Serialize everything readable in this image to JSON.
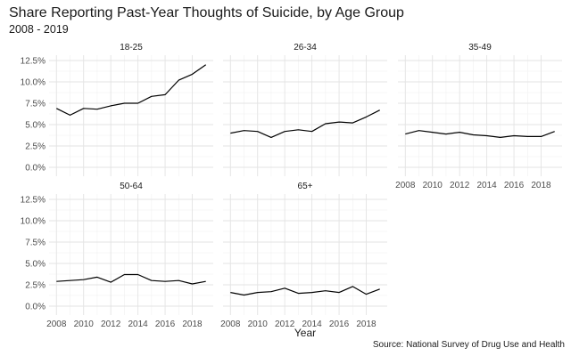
{
  "title": "Share Reporting Past-Year Thoughts of Suicide, by Age Group",
  "subtitle": "2008 - 2019",
  "caption": "Source: National Survey of Drug Use and Health",
  "chart_data": {
    "type": "line",
    "layout": "small-multiples",
    "xlabel": "Year",
    "ylabel": "",
    "xlim": [
      2008,
      2019
    ],
    "ylim": [
      0,
      12.5
    ],
    "x_ticks": [
      "2008",
      "2010",
      "2012",
      "2014",
      "2016",
      "2018"
    ],
    "y_ticks": [
      "0.0%",
      "2.5%",
      "5.0%",
      "7.5%",
      "10.0%",
      "12.5%"
    ],
    "grid": true,
    "line_color": "#000000",
    "x": [
      2008,
      2009,
      2010,
      2011,
      2012,
      2013,
      2014,
      2015,
      2016,
      2017,
      2018,
      2019
    ],
    "panels": [
      {
        "name": "18-25",
        "values": [
          6.9,
          6.1,
          6.9,
          6.8,
          7.2,
          7.5,
          7.5,
          8.3,
          8.5,
          10.2,
          10.9,
          12.0
        ]
      },
      {
        "name": "26-34",
        "values": [
          4.0,
          4.3,
          4.2,
          3.5,
          4.2,
          4.4,
          4.2,
          5.1,
          5.3,
          5.2,
          5.9,
          6.7
        ]
      },
      {
        "name": "35-49",
        "values": [
          3.9,
          4.3,
          4.1,
          3.9,
          4.1,
          3.8,
          3.7,
          3.5,
          3.7,
          3.6,
          3.6,
          4.2
        ]
      },
      {
        "name": "50-64",
        "values": [
          2.9,
          3.0,
          3.1,
          3.4,
          2.8,
          3.7,
          3.7,
          3.0,
          2.9,
          3.0,
          2.6,
          2.9
        ]
      },
      {
        "name": "65+",
        "values": [
          1.6,
          1.3,
          1.6,
          1.7,
          2.1,
          1.5,
          1.6,
          1.8,
          1.6,
          2.3,
          1.4,
          2.0
        ]
      }
    ]
  }
}
